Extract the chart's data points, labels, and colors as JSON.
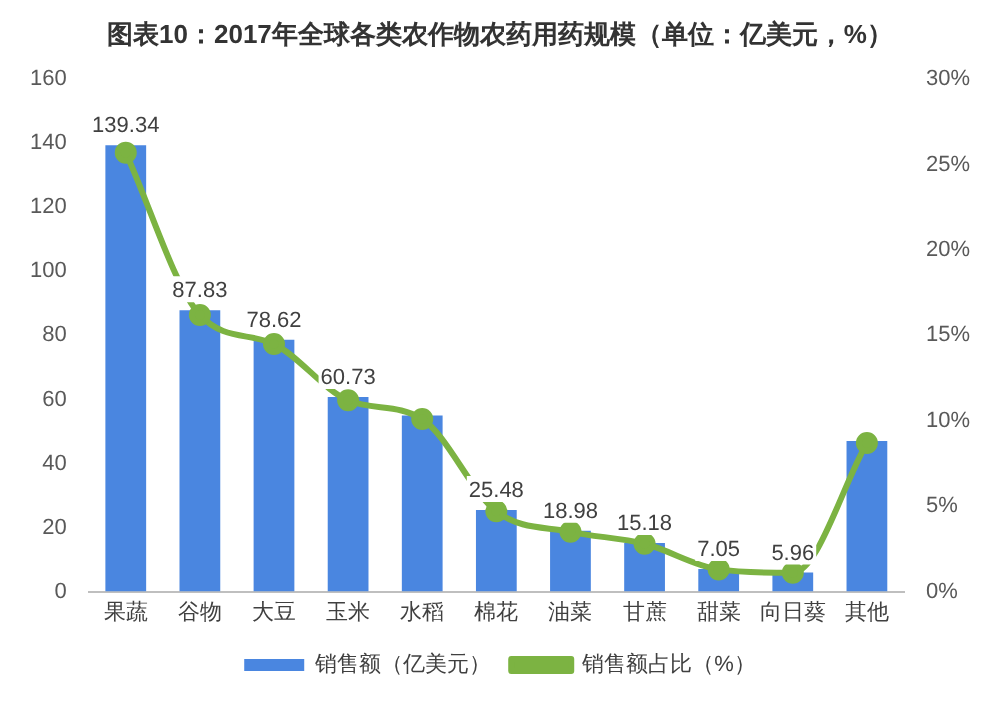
{
  "chart_data": {
    "type": "bar",
    "title": "图表10：2017年全球各类农作物农药用药规模（单位：亿美元，%）",
    "categories": [
      "果蔬",
      "谷物",
      "大豆",
      "玉米",
      "水稻",
      "棉花",
      "油菜",
      "甘蔗",
      "甜菜",
      "向日葵",
      "其他"
    ],
    "series": [
      {
        "name": "销售额（亿美元）",
        "color": "#4a86e0",
        "values": [
          139.34,
          87.83,
          78.62,
          60.73,
          55,
          25.48,
          18.98,
          15.18,
          7.05,
          5.96,
          47
        ],
        "value_labels": [
          "139.34",
          "87.83",
          "78.62",
          "60.73",
          null,
          "25.48",
          "18.98",
          "15.18",
          "7.05",
          "5.96",
          null
        ]
      },
      {
        "name": "销售额占比（%）",
        "type": "line",
        "axis": "y2",
        "color": "#7cb342",
        "marker": "circle",
        "values": [
          25.7,
          16.2,
          14.5,
          11.2,
          10.1,
          4.7,
          3.5,
          2.8,
          1.3,
          1.1,
          8.7
        ]
      }
    ],
    "ylim": [
      0,
      160
    ],
    "yticks": [
      0,
      20,
      40,
      60,
      80,
      100,
      120,
      140,
      160
    ],
    "y2lim": [
      0,
      30
    ],
    "y2ticks": [
      {
        "value": 0,
        "label": "0%"
      },
      {
        "value": 5,
        "label": "5%"
      },
      {
        "value": 10,
        "label": "10%"
      },
      {
        "value": 15,
        "label": "15%"
      },
      {
        "value": 20,
        "label": "20%"
      },
      {
        "value": 25,
        "label": "25%"
      },
      {
        "value": 30,
        "label": "30%"
      }
    ],
    "grid": false,
    "legend": "bottom"
  }
}
